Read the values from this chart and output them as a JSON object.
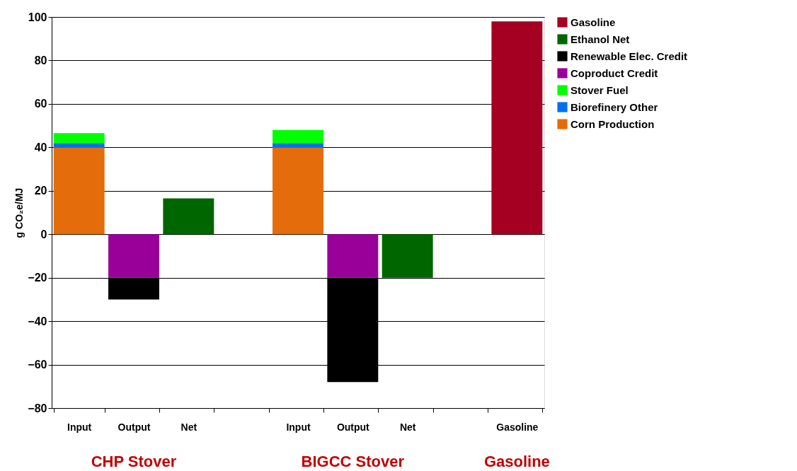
{
  "chart_data": {
    "type": "bar",
    "stacked": true,
    "ylabel": "g CO₂e/MJ",
    "categories": [
      "Input",
      "Output",
      "Net",
      null,
      "Input",
      "Output",
      "Net",
      null,
      "Gasoline"
    ],
    "series": [
      {
        "name": "Corn Production",
        "color": "#e46c0a",
        "values": [
          40,
          null,
          null,
          null,
          40,
          null,
          null,
          null,
          null
        ]
      },
      {
        "name": "Biorefinery Other",
        "color": "#0070f0",
        "values": [
          2,
          null,
          null,
          null,
          2,
          null,
          null,
          null,
          null
        ]
      },
      {
        "name": "Stover Fuel",
        "color": "#00ff00",
        "values": [
          4.5,
          null,
          null,
          null,
          6,
          null,
          null,
          null,
          null
        ]
      },
      {
        "name": "Coproduct Credit",
        "color": "#990099",
        "values": [
          null,
          -20,
          null,
          null,
          null,
          -20,
          null,
          null,
          null
        ]
      },
      {
        "name": "Renewable Elec. Credit",
        "color": "#000000",
        "values": [
          null,
          -10,
          null,
          null,
          null,
          -48,
          null,
          null,
          null
        ]
      },
      {
        "name": "Ethanol Net",
        "color": "#006600",
        "values": [
          null,
          null,
          16.5,
          null,
          null,
          null,
          -20,
          null,
          null
        ]
      },
      {
        "name": "Gasoline",
        "color": "#a50021",
        "values": [
          null,
          null,
          null,
          null,
          null,
          null,
          null,
          null,
          98
        ]
      }
    ],
    "ylim": [
      -80,
      100
    ],
    "yticks": [
      -80,
      -60,
      -40,
      -20,
      0,
      20,
      40,
      60,
      80,
      100
    ],
    "grid": "y",
    "legend": "right",
    "annotations": [
      "CHP Stover",
      "BIGCC Stover",
      "Gasoline"
    ]
  }
}
